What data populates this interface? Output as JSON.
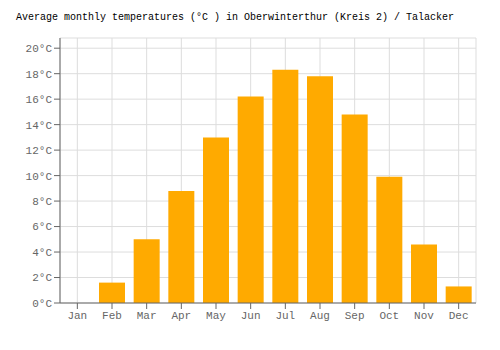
{
  "chart_data": {
    "type": "bar",
    "title": "Average monthly temperatures (°C ) in Oberwinterthur (Kreis 2) / Talacker",
    "categories": [
      "Jan",
      "Feb",
      "Mar",
      "Apr",
      "May",
      "Jun",
      "Jul",
      "Aug",
      "Sep",
      "Oct",
      "Nov",
      "Dec"
    ],
    "values": [
      0.0,
      1.6,
      5.0,
      8.8,
      13.0,
      16.2,
      18.3,
      17.8,
      14.8,
      9.9,
      4.6,
      1.3
    ],
    "color": "#FFAA00",
    "ylim": [
      0,
      20.8
    ],
    "yticks": [
      {
        "value": 0,
        "label": "0°C"
      },
      {
        "value": 2,
        "label": "2°C"
      },
      {
        "value": 4,
        "label": "4°C"
      },
      {
        "value": 6,
        "label": "6°C"
      },
      {
        "value": 8,
        "label": "8°C"
      },
      {
        "value": 10,
        "label": "10°C"
      },
      {
        "value": 12,
        "label": "12°C"
      },
      {
        "value": 14,
        "label": "14°C"
      },
      {
        "value": 16,
        "label": "16°C"
      },
      {
        "value": 18,
        "label": "18°C"
      },
      {
        "value": 20,
        "label": "20°C"
      }
    ],
    "grid": true
  }
}
